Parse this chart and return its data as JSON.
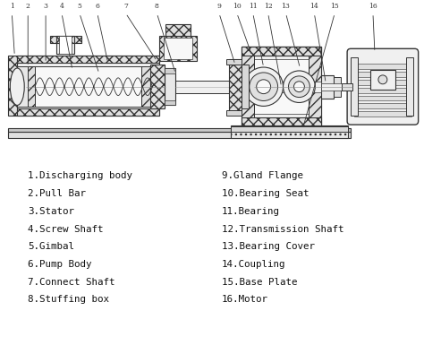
{
  "background_color": "#ffffff",
  "lc": "#555555",
  "lc_dark": "#333333",
  "fc_hatch": "#e8e8e8",
  "fc_light": "#f0f0f0",
  "fc_mid": "#d8d8d8",
  "fc_dark": "#c0c0c0",
  "parts_left": [
    "1.Discharging body",
    "2.Pull Bar",
    "3.Stator",
    "4.Screw Shaft",
    "5.Gimbal",
    "6.Pump Body",
    "7.Connect Shaft",
    "8.Stuffing box"
  ],
  "parts_right": [
    "9.Gland Flange",
    "10.Bearing Seat",
    "11.Bearing",
    "12.Transmission Shaft",
    "13.Bearing Cover",
    "14.Coupling",
    "15.Base Plate",
    "16.Motor"
  ],
  "figsize": [
    4.74,
    3.95
  ],
  "dpi": 100
}
